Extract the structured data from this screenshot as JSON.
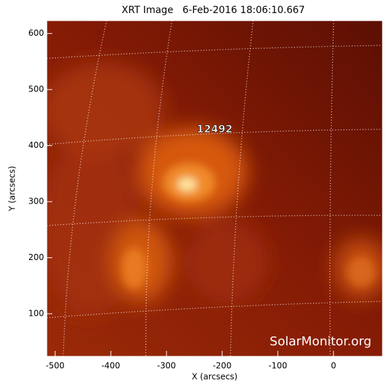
{
  "chart_data": {
    "type": "image",
    "title": "XRT Image   6-Feb-2016 18:06:10.667",
    "xlabel": "X (arcsecs)",
    "ylabel": "Y (arcsecs)",
    "xlim": [
      -515,
      88
    ],
    "ylim": [
      24,
      623
    ],
    "xticks": [
      -500,
      -400,
      -300,
      -200,
      -100,
      0
    ],
    "yticks": [
      100,
      200,
      300,
      400,
      500,
      600
    ],
    "annotations": [
      "12492",
      "SolarMonitor.org"
    ]
  }
}
